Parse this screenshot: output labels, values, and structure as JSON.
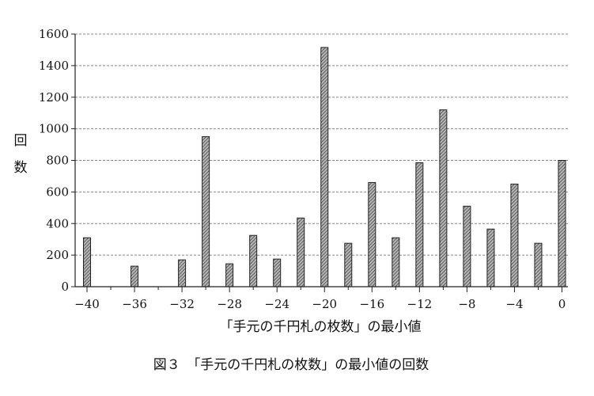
{
  "chart_data": {
    "type": "bar",
    "title": "",
    "caption": "図３　「手元の千円札の枚数」の最小値の回数",
    "xlabel": "「手元の千円札の枚数」の最小値",
    "ylabel": "回数",
    "ylim": [
      0,
      1600
    ],
    "xlim": [
      -41,
      0.5
    ],
    "yticks": [
      0,
      200,
      400,
      600,
      800,
      1000,
      1200,
      1400,
      1600
    ],
    "xticks": [
      -40,
      -36,
      -32,
      -28,
      -24,
      -20,
      -16,
      -12,
      -8,
      -4,
      0
    ],
    "xtick_labels": [
      "−40",
      "−36",
      "−32",
      "−28",
      "−24",
      "−20",
      "−16",
      "−12",
      "−8",
      "−4",
      "0"
    ],
    "grid": true,
    "colors": {
      "bar_fill": "#8c8c8c",
      "bar_stroke": "#222222",
      "grid": "#888888",
      "axis": "#222222"
    },
    "x": [
      -40,
      -36,
      -32,
      -30,
      -28,
      -26,
      -24,
      -22,
      -20,
      -18,
      -16,
      -14,
      -12,
      -10,
      -8,
      -6,
      -4,
      -2,
      0
    ],
    "values": [
      310,
      130,
      170,
      950,
      145,
      325,
      175,
      435,
      1515,
      275,
      660,
      310,
      785,
      1120,
      510,
      365,
      650,
      275,
      800
    ]
  }
}
